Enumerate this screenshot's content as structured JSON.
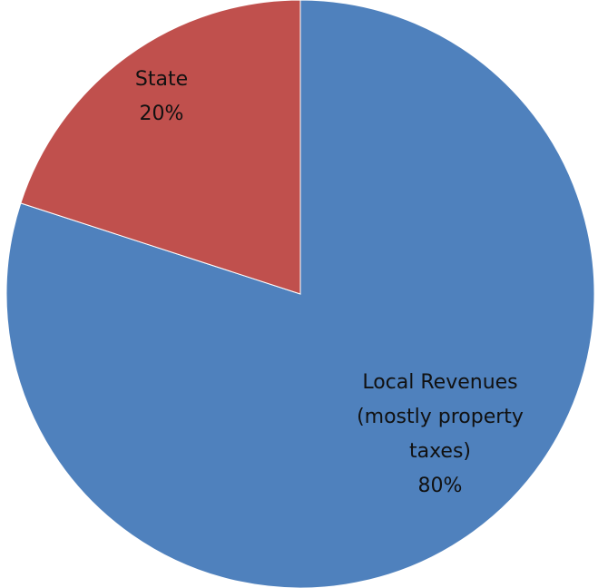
{
  "chart_data": {
    "type": "pie",
    "categories": [
      "Local Revenues (mostly property taxes)",
      "State"
    ],
    "values": [
      80,
      20
    ],
    "value_labels": [
      "80%",
      "20%"
    ],
    "colors": [
      "#4f81bd",
      "#c0504d"
    ]
  }
}
